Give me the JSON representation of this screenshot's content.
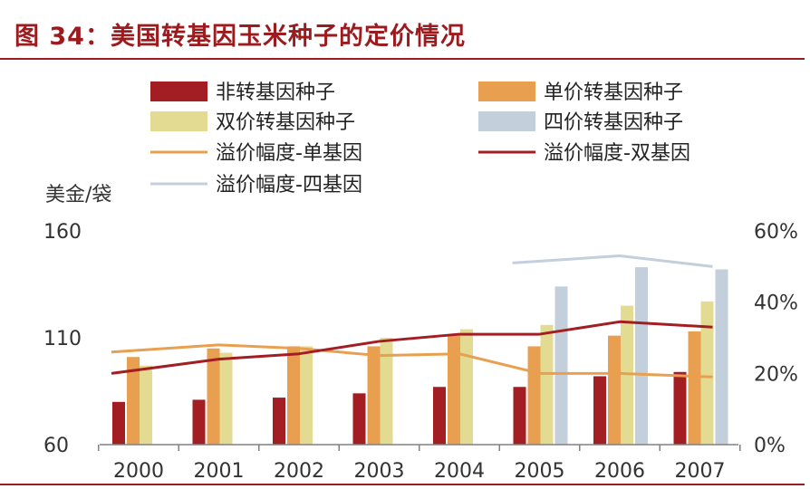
{
  "figure_title": "图 34：美国转基因玉米种子的定价情况",
  "chart_data": {
    "type": "bar",
    "title": "",
    "categories": [
      "2000",
      "2001",
      "2002",
      "2003",
      "2004",
      "2005",
      "2006",
      "2007"
    ],
    "y_left": {
      "label": "美金/袋",
      "range": [
        60,
        160
      ],
      "ticks": [
        60,
        110,
        160
      ]
    },
    "y_right": {
      "range": [
        0,
        60
      ],
      "ticks": [
        "0%",
        "20%",
        "40%",
        "60%"
      ]
    },
    "legend_position": "top",
    "series": [
      {
        "name": "非转基因种子",
        "kind": "bar",
        "axis": "left",
        "color": "#a31e22",
        "values": [
          80,
          81,
          82,
          84,
          87,
          87,
          92,
          94
        ]
      },
      {
        "name": "单价转基因种子",
        "kind": "bar",
        "axis": "left",
        "color": "#e8a050",
        "values": [
          101,
          105,
          106,
          106,
          111,
          106,
          111,
          113
        ]
      },
      {
        "name": "双价转基因种子",
        "kind": "bar",
        "axis": "left",
        "color": "#e4db92",
        "values": [
          97,
          103,
          106,
          110,
          114,
          116,
          125,
          127
        ]
      },
      {
        "name": "四价转基因种子",
        "kind": "bar",
        "axis": "left",
        "color": "#c3cfdb",
        "values": [
          null,
          null,
          null,
          null,
          null,
          134,
          143,
          142
        ]
      },
      {
        "name": "溢价幅度-单基因",
        "kind": "line",
        "axis": "right",
        "color": "#e8a050",
        "values": [
          26,
          28,
          27,
          25,
          25.5,
          20,
          20,
          19
        ]
      },
      {
        "name": "溢价幅度-双基因",
        "kind": "line",
        "axis": "right",
        "color": "#a31e22",
        "values": [
          20,
          24,
          25.5,
          29,
          31,
          31,
          34.5,
          33
        ]
      },
      {
        "name": "溢价幅度-四基因",
        "kind": "line",
        "axis": "right",
        "color": "#c3cfdb",
        "values": [
          null,
          null,
          null,
          null,
          null,
          51,
          53,
          50
        ]
      }
    ]
  }
}
